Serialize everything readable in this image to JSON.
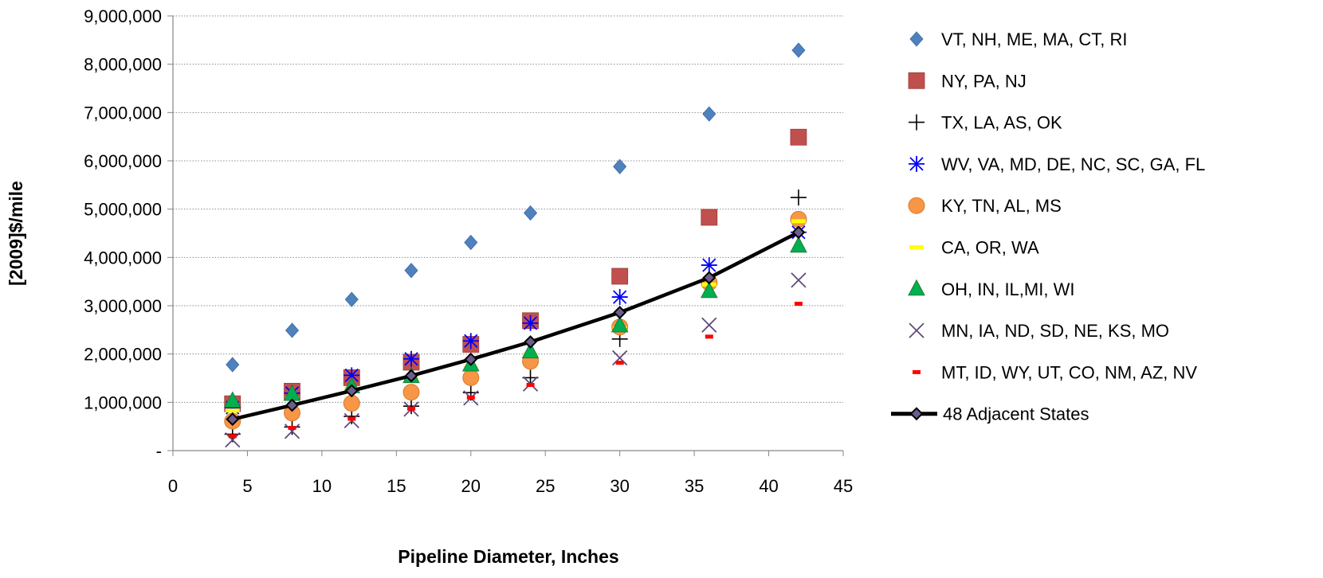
{
  "chart_data": {
    "type": "scatter",
    "title": "",
    "xlabel": "Pipeline Diameter, Inches",
    "ylabel": "[2009]$/mile",
    "xlim": [
      0,
      45
    ],
    "ylim": [
      0,
      9000000
    ],
    "x_ticks": [
      "0",
      "5",
      "10",
      "15",
      "20",
      "25",
      "30",
      "35",
      "40",
      "45"
    ],
    "y_ticks": [
      "-",
      "1,000,000",
      "2,000,000",
      "3,000,000",
      "4,000,000",
      "5,000,000",
      "6,000,000",
      "7,000,000",
      "8,000,000",
      "9,000,000"
    ],
    "grid": "horizontal dotted",
    "legend_position": "right",
    "x": [
      4,
      8,
      12,
      16,
      20,
      24,
      30,
      36,
      42
    ],
    "series": [
      {
        "name": "VT, NH, ME, MA, CT, RI",
        "marker": "diamond",
        "color": "#4F81BD",
        "values": [
          1780000,
          2490000,
          3130000,
          3730000,
          4310000,
          4920000,
          5880000,
          6970000,
          8290000
        ]
      },
      {
        "name": "NY, PA, NJ",
        "marker": "square",
        "color": "#C0504D",
        "values": [
          970000,
          1230000,
          1510000,
          1830000,
          2200000,
          2690000,
          3610000,
          4830000,
          6490000
        ]
      },
      {
        "name": "TX, LA, AS, OK",
        "marker": "plus",
        "color": "#000000",
        "values": [
          340000,
          490000,
          710000,
          920000,
          1200000,
          1510000,
          2310000,
          3500000,
          5240000
        ]
      },
      {
        "name": "WV, VA, MD, DE, NC, SC, GA, FL",
        "marker": "star",
        "color": "#0000FF",
        "values": [
          890000,
          1190000,
          1560000,
          1900000,
          2270000,
          2640000,
          3180000,
          3840000,
          4520000
        ]
      },
      {
        "name": "KY, TN, AL, MS",
        "marker": "circle",
        "color": "#F79646",
        "values": [
          610000,
          780000,
          980000,
          1210000,
          1510000,
          1850000,
          2560000,
          3480000,
          4790000
        ]
      },
      {
        "name": "CA, OR, WA",
        "marker": "dash",
        "color": "#FFFF00",
        "values": [
          830000,
          1080000,
          1280000,
          1470000,
          1700000,
          1990000,
          2530000,
          3440000,
          4750000
        ]
      },
      {
        "name": "OH, IN, IL,MI, WI",
        "marker": "triangle",
        "color": "#00B050",
        "values": [
          1030000,
          1170000,
          1330000,
          1540000,
          1780000,
          2050000,
          2590000,
          3300000,
          4240000
        ]
      },
      {
        "name": "MN, IA, ND, SD, NE, KS, MO",
        "marker": "x",
        "color": "#604A7B",
        "values": [
          220000,
          400000,
          620000,
          860000,
          1090000,
          1380000,
          1920000,
          2600000,
          3530000
        ]
      },
      {
        "name": "MT, ID, WY, UT, CO, NM, AZ, NV",
        "marker": "redbar",
        "color": "#FF0000",
        "values": [
          300000,
          470000,
          660000,
          870000,
          1100000,
          1360000,
          1820000,
          2360000,
          3040000
        ]
      },
      {
        "name": "48 Adjacent States",
        "marker": "line-diamond",
        "color": "#000000",
        "values": [
          650000,
          940000,
          1240000,
          1550000,
          1890000,
          2250000,
          2860000,
          3580000,
          4520000
        ]
      }
    ]
  }
}
